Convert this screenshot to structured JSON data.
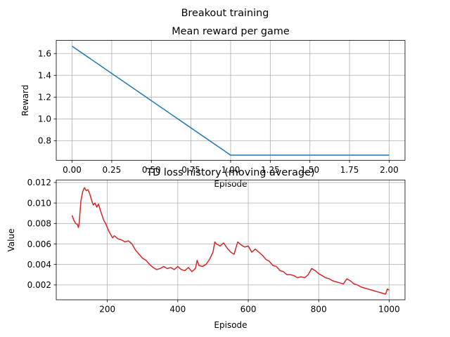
{
  "figure": {
    "suptitle": "Breakout training"
  },
  "chart_data": [
    {
      "type": "line",
      "title": "Mean reward per game",
      "xlabel": "Episode",
      "ylabel": "Reward",
      "xlim": [
        -0.1,
        2.1
      ],
      "ylim": [
        0.62,
        1.72
      ],
      "grid": true,
      "xticks": [
        0,
        0.25,
        0.5,
        0.75,
        1.0,
        1.25,
        1.5,
        1.75,
        2.0
      ],
      "xtick_labels": [
        "0.00",
        "0.25",
        "0.50",
        "0.75",
        "1.00",
        "1.25",
        "1.50",
        "1.75",
        "2.00"
      ],
      "yticks": [
        0.8,
        1.0,
        1.2,
        1.4,
        1.6
      ],
      "ytick_labels": [
        "0.8",
        "1.0",
        "1.2",
        "1.4",
        "1.6"
      ],
      "series": [
        {
          "color": "#1f77b4",
          "x": [
            0,
            1,
            2
          ],
          "y": [
            1.667,
            0.667,
            0.667
          ]
        }
      ]
    },
    {
      "type": "line",
      "title": "TD loss history (moving average)",
      "xlabel": "Episode",
      "ylabel": "Value",
      "xlim": [
        55,
        1045
      ],
      "ylim": [
        0.00055,
        0.01225
      ],
      "grid": true,
      "xticks": [
        200,
        400,
        600,
        800,
        1000
      ],
      "xtick_labels": [
        "200",
        "400",
        "600",
        "800",
        "1000"
      ],
      "yticks": [
        0.002,
        0.004,
        0.006,
        0.008,
        0.01,
        0.012
      ],
      "ytick_labels": [
        "0.002",
        "0.004",
        "0.006",
        "0.008",
        "0.010",
        "0.012"
      ],
      "series": [
        {
          "color": "#d62728",
          "x": [
            100,
            105,
            110,
            115,
            118,
            120,
            125,
            130,
            135,
            140,
            145,
            150,
            155,
            160,
            165,
            170,
            175,
            180,
            185,
            190,
            195,
            200,
            205,
            210,
            215,
            220,
            230,
            240,
            250,
            260,
            270,
            280,
            290,
            300,
            310,
            320,
            330,
            340,
            350,
            360,
            370,
            380,
            390,
            400,
            410,
            420,
            430,
            440,
            450,
            455,
            460,
            470,
            480,
            490,
            500,
            505,
            510,
            520,
            530,
            540,
            550,
            560,
            570,
            580,
            590,
            600,
            610,
            620,
            630,
            640,
            650,
            660,
            670,
            680,
            690,
            700,
            710,
            720,
            730,
            740,
            750,
            760,
            770,
            780,
            790,
            800,
            810,
            820,
            830,
            840,
            850,
            860,
            870,
            880,
            890,
            900,
            910,
            920,
            930,
            940,
            950,
            960,
            970,
            980,
            990,
            995,
            1000
          ],
          "y": [
            0.0088,
            0.0083,
            0.008,
            0.0079,
            0.0076,
            0.008,
            0.0102,
            0.0111,
            0.0115,
            0.0112,
            0.0113,
            0.0109,
            0.0103,
            0.0098,
            0.01,
            0.0096,
            0.0099,
            0.0093,
            0.0088,
            0.0083,
            0.008,
            0.0076,
            0.0072,
            0.0069,
            0.0066,
            0.0068,
            0.0065,
            0.0064,
            0.0062,
            0.0063,
            0.006,
            0.0054,
            0.005,
            0.0046,
            0.0044,
            0.004,
            0.0037,
            0.0035,
            0.0036,
            0.0038,
            0.0036,
            0.0037,
            0.0035,
            0.0038,
            0.0035,
            0.0034,
            0.0037,
            0.0033,
            0.0036,
            0.0044,
            0.0039,
            0.0038,
            0.004,
            0.0045,
            0.0052,
            0.0062,
            0.006,
            0.0058,
            0.0061,
            0.0056,
            0.0052,
            0.005,
            0.0062,
            0.0059,
            0.0057,
            0.0058,
            0.0052,
            0.0055,
            0.0052,
            0.0049,
            0.0045,
            0.0043,
            0.0039,
            0.0038,
            0.0034,
            0.0033,
            0.003,
            0.003,
            0.0029,
            0.0027,
            0.0028,
            0.0027,
            0.003,
            0.0036,
            0.0034,
            0.0031,
            0.0029,
            0.0027,
            0.0026,
            0.0024,
            0.0023,
            0.0022,
            0.0021,
            0.0026,
            0.0024,
            0.0021,
            0.002,
            0.0018,
            0.0017,
            0.0016,
            0.0015,
            0.0014,
            0.0013,
            0.0012,
            0.0011,
            0.0016,
            0.0015
          ]
        }
      ]
    }
  ]
}
